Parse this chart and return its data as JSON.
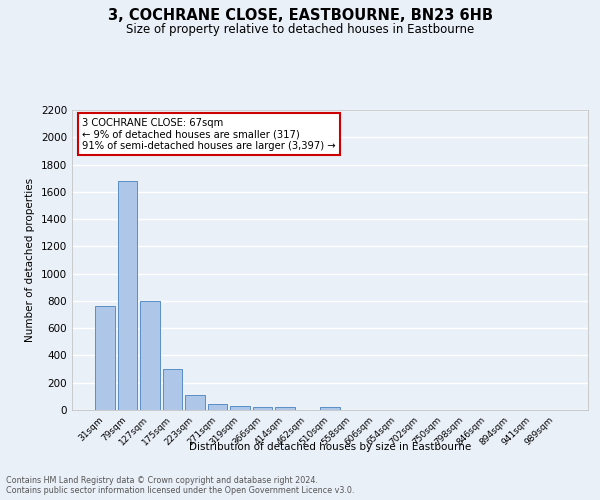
{
  "title": "3, COCHRANE CLOSE, EASTBOURNE, BN23 6HB",
  "subtitle": "Size of property relative to detached houses in Eastbourne",
  "xlabel": "Distribution of detached houses by size in Eastbourne",
  "ylabel": "Number of detached properties",
  "categories": [
    "31sqm",
    "79sqm",
    "127sqm",
    "175sqm",
    "223sqm",
    "271sqm",
    "319sqm",
    "366sqm",
    "414sqm",
    "462sqm",
    "510sqm",
    "558sqm",
    "606sqm",
    "654sqm",
    "702sqm",
    "750sqm",
    "798sqm",
    "846sqm",
    "894sqm",
    "941sqm",
    "989sqm"
  ],
  "values": [
    760,
    1680,
    800,
    300,
    110,
    42,
    30,
    25,
    20,
    0,
    25,
    0,
    0,
    0,
    0,
    0,
    0,
    0,
    0,
    0,
    0
  ],
  "bar_color": "#aec6e8",
  "bar_edge_color": "#5a8fc4",
  "bg_color": "#eaf0f8",
  "grid_color": "#ffffff",
  "annotation_text": "3 COCHRANE CLOSE: 67sqm\n← 9% of detached houses are smaller (317)\n91% of semi-detached houses are larger (3,397) →",
  "annotation_box_color": "#ffffff",
  "annotation_border_color": "#cc0000",
  "ylim": [
    0,
    2200
  ],
  "yticks": [
    0,
    200,
    400,
    600,
    800,
    1000,
    1200,
    1400,
    1600,
    1800,
    2000,
    2200
  ],
  "footer_line1": "Contains HM Land Registry data © Crown copyright and database right 2024.",
  "footer_line2": "Contains public sector information licensed under the Open Government Licence v3.0."
}
